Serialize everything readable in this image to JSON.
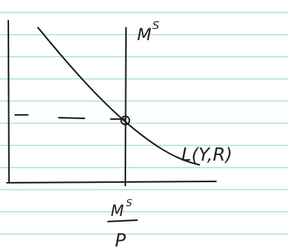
{
  "supply_label": {
    "base": "M",
    "sup": "S"
  },
  "demand_label": "L(Y,R)",
  "x_label": {
    "numerator": {
      "base": "M",
      "sup": "S"
    },
    "denominator": "P"
  }
}
